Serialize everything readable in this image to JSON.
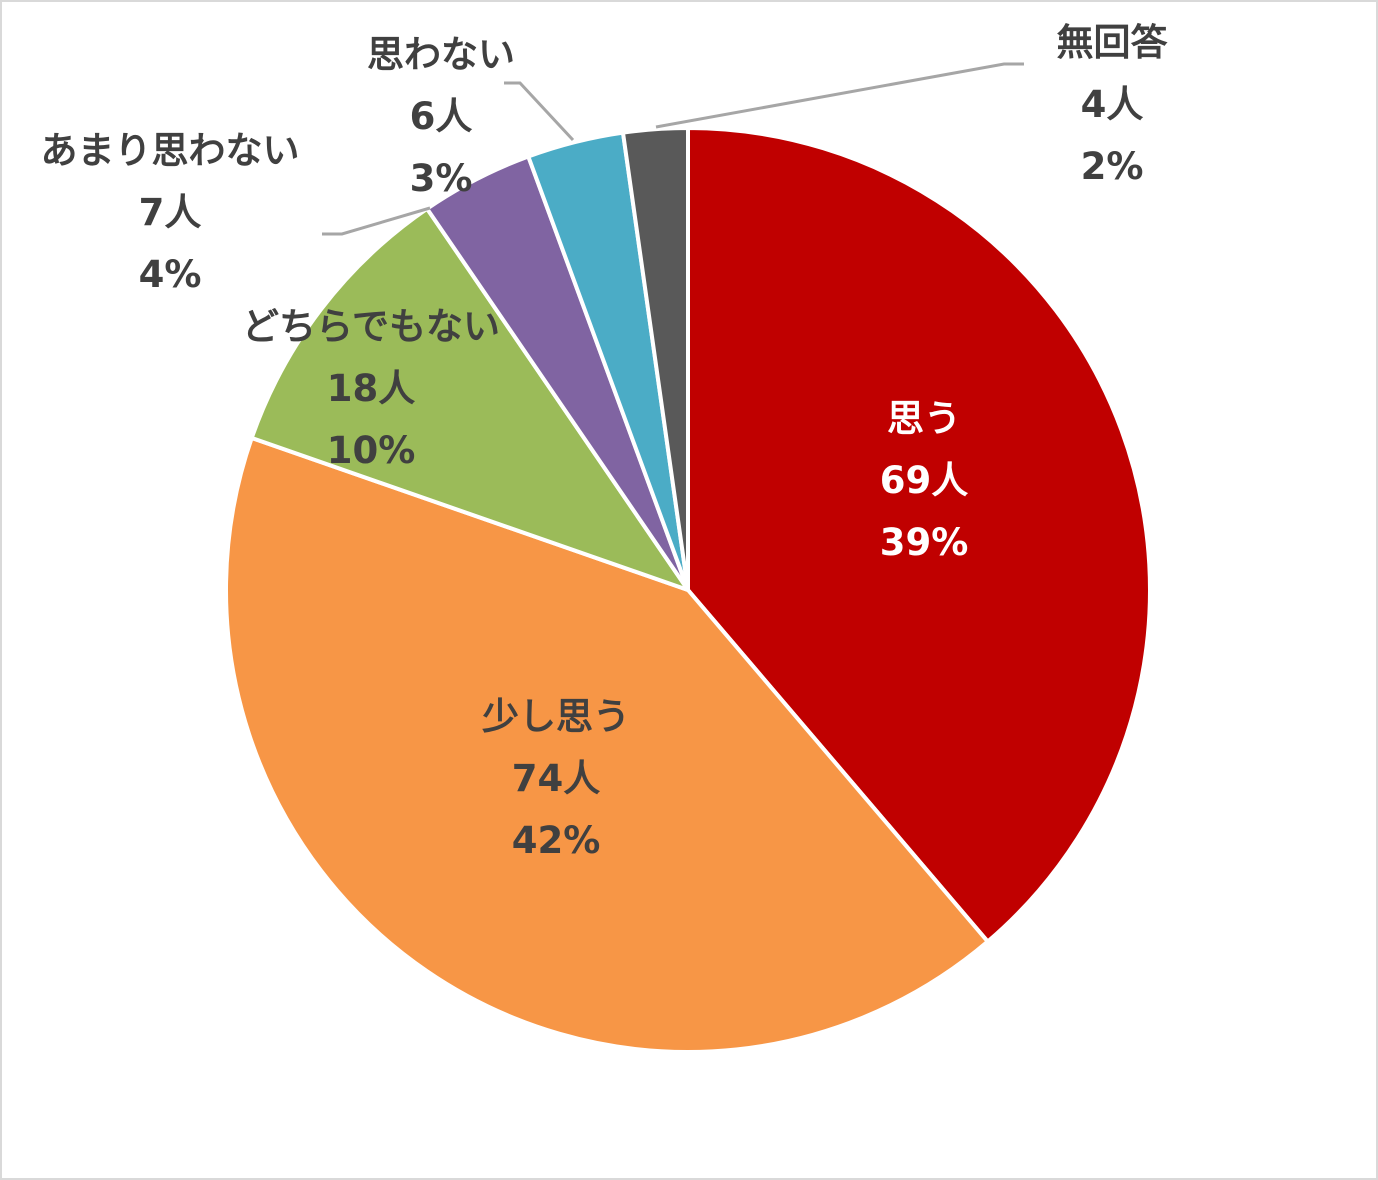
{
  "chart_data": {
    "type": "pie",
    "title": "",
    "start_angle": "12 o'clock, clockwise",
    "unit": "人",
    "categories": [
      "思う",
      "少し思う",
      "どちらでもない",
      "あまり思わない",
      "思わない",
      "無回答"
    ],
    "values": [
      69,
      74,
      18,
      7,
      6,
      4
    ],
    "percent_labels": [
      "39%",
      "42%",
      "10%",
      "4%",
      "3%",
      "2%"
    ],
    "count_labels": [
      "69人",
      "74人",
      "18人",
      "7人",
      "6人",
      "4人"
    ],
    "colors": [
      "#c00000",
      "#f79646",
      "#9bbb59",
      "#8064a2",
      "#4bacc6",
      "#595959"
    ],
    "legend": "none (data labels with category name, count, percentage)",
    "leader_lines": [
      "あまり思わない",
      "思わない",
      "無回答"
    ]
  },
  "labels": [
    {
      "name": "思う",
      "count": "69人",
      "pct": "39%"
    },
    {
      "name": "少し思う",
      "count": "74人",
      "pct": "42%"
    },
    {
      "name": "どちらでもない",
      "count": "18人",
      "pct": "10%"
    },
    {
      "name": "あまり思わない",
      "count": "7人",
      "pct": "4%"
    },
    {
      "name": "思わない",
      "count": "6人",
      "pct": "3%"
    },
    {
      "name": "無回答",
      "count": "4人",
      "pct": "2%"
    }
  ]
}
